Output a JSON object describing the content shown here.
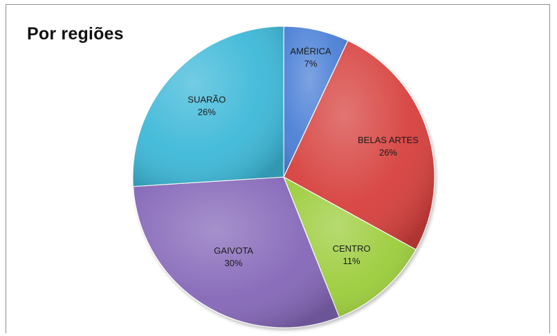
{
  "chart_data": {
    "type": "pie",
    "title": "Por regiões",
    "start_angle_deg": 0,
    "direction": "clockwise",
    "slices": [
      {
        "name": "AMÉRICA",
        "value": 7,
        "label": "7%",
        "color": "#4a7fd6"
      },
      {
        "name": "BELAS ARTES",
        "value": 26,
        "label": "26%",
        "color": "#d63f3c"
      },
      {
        "name": "CENTRO",
        "value": 11,
        "label": "11%",
        "color": "#9bcc3a"
      },
      {
        "name": "GAIVOTA",
        "value": 30,
        "label": "30%",
        "color": "#8466b8"
      },
      {
        "name": "SUARÃO",
        "value": 26,
        "label": "26%",
        "color": "#3cb8d8"
      }
    ]
  }
}
